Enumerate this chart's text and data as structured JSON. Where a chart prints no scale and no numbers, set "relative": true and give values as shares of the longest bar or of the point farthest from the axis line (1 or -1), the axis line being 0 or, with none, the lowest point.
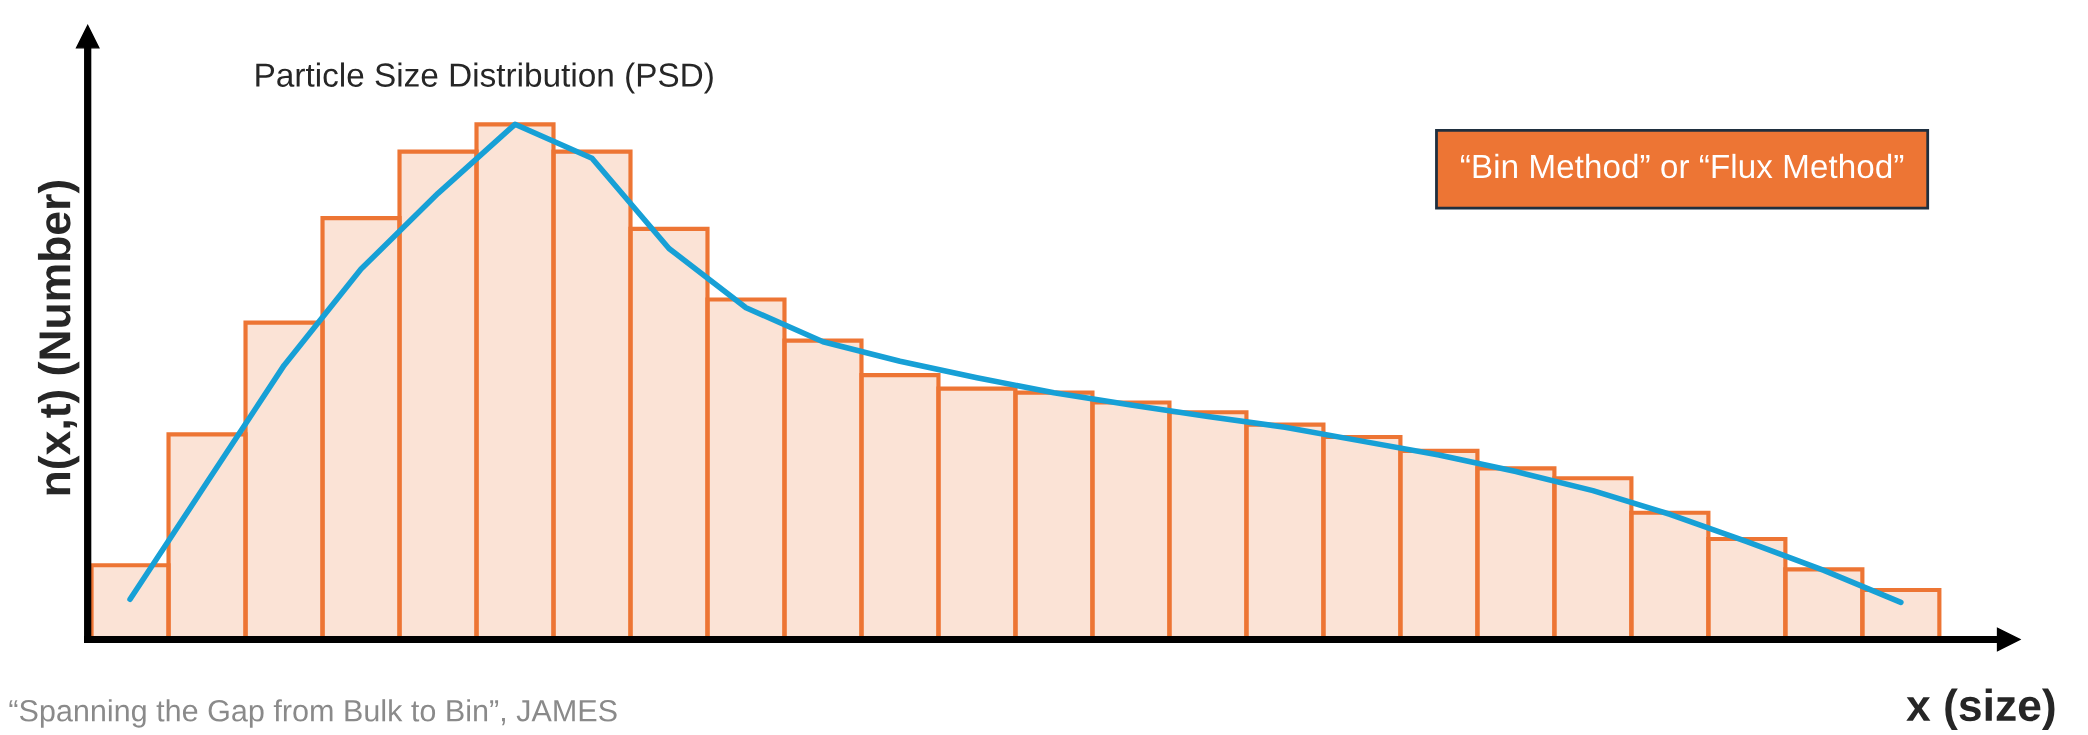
{
  "chart_data": [
    {
      "type": "bar",
      "relative": true,
      "title": "Particle Size Distribution (PSD)",
      "xlabel": "x (size)",
      "ylabel": "n(x,t) (Number)",
      "categories": [
        null,
        null,
        null,
        null,
        null,
        null,
        null,
        null,
        null,
        null,
        null,
        null,
        null,
        null,
        null,
        null,
        null,
        null,
        null,
        null,
        null,
        null,
        null,
        null
      ],
      "color": "#ed7534",
      "values": [
        0.144,
        0.398,
        0.615,
        0.818,
        0.947,
        1,
        0.947,
        0.797,
        0.66,
        0.58,
        0.513,
        0.487,
        0.479,
        0.46,
        0.441,
        0.417,
        0.393,
        0.366,
        0.332,
        0.313,
        0.246,
        0.195,
        0.136,
        0.096
      ],
      "annotations": [
        "“Bin Method” or “Flux Method”",
        "“Spanning the Gap from Bulk to Bin”, JAMES"
      ]
    },
    {
      "type": "line",
      "relative": true,
      "categories": [
        null,
        null,
        null,
        null,
        null,
        null,
        null,
        null,
        null,
        null,
        null,
        null,
        null,
        null,
        null,
        null,
        null,
        null,
        null,
        null,
        null,
        null,
        null,
        null
      ],
      "color": "#17a0d6",
      "line_style": "solid",
      "marker": "none",
      "values": [
        0.078,
        0.305,
        0.532,
        0.719,
        0.866,
        1,
        0.934,
        0.759,
        0.644,
        0.578,
        0.54,
        0.508,
        0.479,
        0.455,
        0.433,
        0.412,
        0.385,
        0.358,
        0.326,
        0.289,
        0.243,
        0.19,
        0.134,
        0.072
      ]
    }
  ]
}
